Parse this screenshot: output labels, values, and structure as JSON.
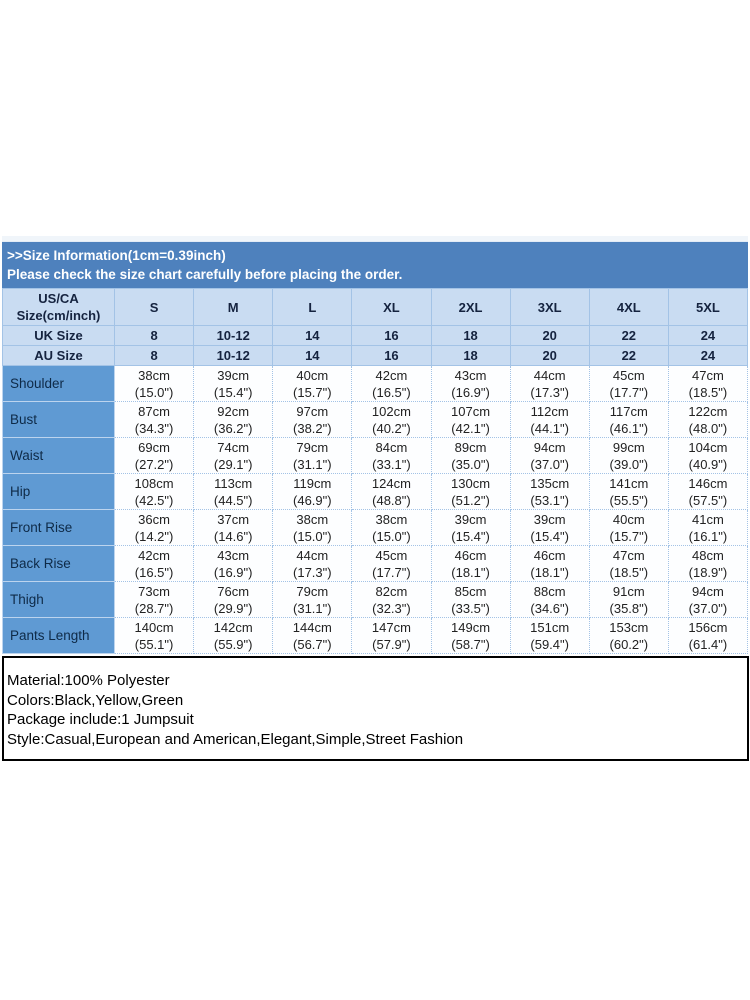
{
  "banner": {
    "line1": ">>Size Information(1cm=0.39inch)",
    "line2": "Please check the size chart carefully before placing the order."
  },
  "size_table": {
    "corner_label": "US/CA\nSize(cm/inch)",
    "sizes": [
      "S",
      "M",
      "L",
      "XL",
      "2XL",
      "3XL",
      "4XL",
      "5XL"
    ],
    "uk_label": "UK Size",
    "uk_values": [
      "8",
      "10-12",
      "14",
      "16",
      "18",
      "20",
      "22",
      "24"
    ],
    "au_label": "AU Size",
    "au_values": [
      "8",
      "10-12",
      "14",
      "16",
      "18",
      "20",
      "22",
      "24"
    ],
    "rows": [
      {
        "label": "Shoulder",
        "values": [
          "38cm\n(15.0\")",
          "39cm\n(15.4\")",
          "40cm\n(15.7\")",
          "42cm\n(16.5\")",
          "43cm\n(16.9\")",
          "44cm\n(17.3\")",
          "45cm\n(17.7\")",
          "47cm\n(18.5\")"
        ]
      },
      {
        "label": "Bust",
        "values": [
          "87cm\n(34.3\")",
          "92cm\n(36.2\")",
          "97cm\n(38.2\")",
          "102cm\n(40.2\")",
          "107cm\n(42.1\")",
          "112cm\n(44.1\")",
          "117cm\n(46.1\")",
          "122cm\n(48.0\")"
        ]
      },
      {
        "label": "Waist",
        "values": [
          "69cm\n(27.2\")",
          "74cm\n(29.1\")",
          "79cm\n(31.1\")",
          "84cm\n(33.1\")",
          "89cm\n(35.0\")",
          "94cm\n(37.0\")",
          "99cm\n(39.0\")",
          "104cm\n(40.9\")"
        ]
      },
      {
        "label": "Hip",
        "values": [
          "108cm\n(42.5\")",
          "113cm\n(44.5\")",
          "119cm\n(46.9\")",
          "124cm\n(48.8\")",
          "130cm\n(51.2\")",
          "135cm\n(53.1\")",
          "141cm\n(55.5\")",
          "146cm\n(57.5\")"
        ]
      },
      {
        "label": "Front Rise",
        "values": [
          "36cm\n(14.2\")",
          "37cm\n(14.6\")",
          "38cm\n(15.0\")",
          "38cm\n(15.0\")",
          "39cm\n(15.4\")",
          "39cm\n(15.4\")",
          "40cm\n(15.7\")",
          "41cm\n(16.1\")"
        ]
      },
      {
        "label": "Back Rise",
        "values": [
          "42cm\n(16.5\")",
          "43cm\n(16.9\")",
          "44cm\n(17.3\")",
          "45cm\n(17.7\")",
          "46cm\n(18.1\")",
          "46cm\n(18.1\")",
          "47cm\n(18.5\")",
          "48cm\n(18.9\")"
        ]
      },
      {
        "label": "Thigh",
        "values": [
          "73cm\n(28.7\")",
          "76cm\n(29.9\")",
          "79cm\n(31.1\")",
          "82cm\n(32.3\")",
          "85cm\n(33.5\")",
          "88cm\n(34.6\")",
          "91cm\n(35.8\")",
          "94cm\n(37.0\")"
        ]
      },
      {
        "label": "Pants Length",
        "values": [
          "140cm\n(55.1\")",
          "142cm\n(55.9\")",
          "144cm\n(56.7\")",
          "147cm\n(57.9\")",
          "149cm\n(58.7\")",
          "151cm\n(59.4\")",
          "153cm\n(60.2\")",
          "156cm\n(61.4\")"
        ]
      }
    ]
  },
  "product_info": {
    "lines": [
      "Material:100% Polyester",
      "Colors:Black,Yellow,Green",
      "Package include:1 Jumpsuit",
      "Style:Casual,European and American,Elegant,Simple,Street Fashion"
    ]
  },
  "colors": {
    "banner_bg": "#4e81bd",
    "header_bg": "#c9dcf2",
    "row_label_bg": "#5f9ad3",
    "grid_line": "#a3c3e6",
    "info_border": "#000000"
  }
}
